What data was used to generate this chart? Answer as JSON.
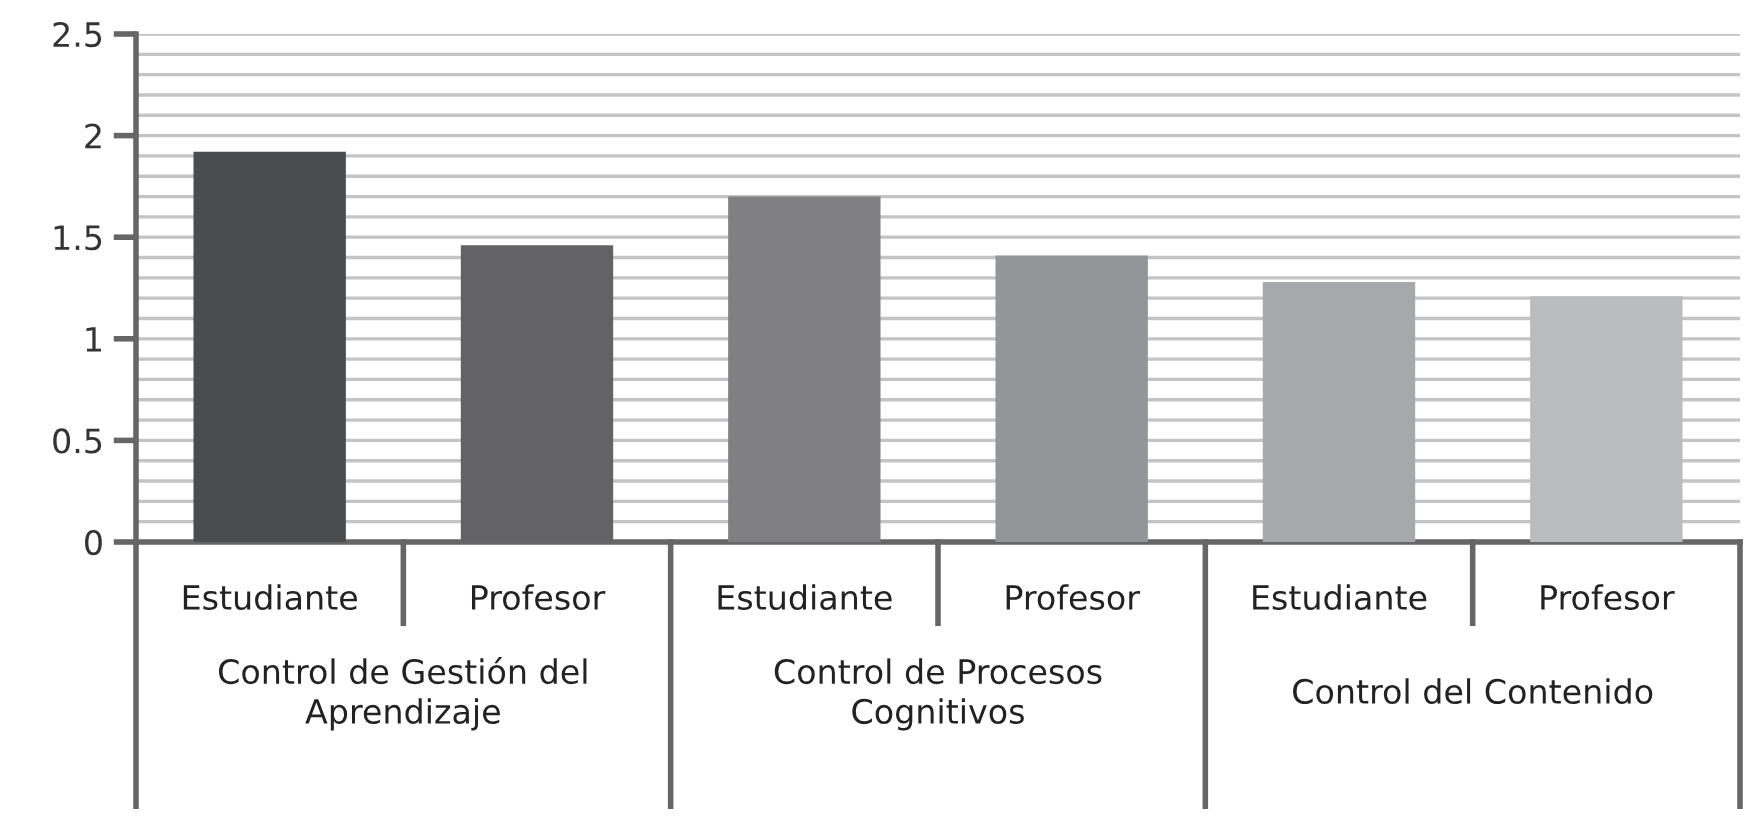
{
  "chart_data": {
    "type": "bar",
    "categories": [
      "Estudiante",
      "Profesor",
      "Estudiante",
      "Profesor",
      "Estudiante",
      "Profesor"
    ],
    "values": [
      1.92,
      1.46,
      1.7,
      1.41,
      1.28,
      1.21
    ],
    "colors": [
      "#4b4c4e",
      "#636365",
      "#808083",
      "#949598",
      "#a7a8ab",
      "#bbbcbf"
    ],
    "annotations": [
      "Control de Gestión del\nAprendizaje",
      "Control de Procesos\nCognitivos",
      "Control del Contenido"
    ],
    "ylim": [
      0,
      2.5
    ],
    "yticks": [
      0,
      0.5,
      1,
      1.5,
      2,
      2.5
    ],
    "grid": "y"
  }
}
